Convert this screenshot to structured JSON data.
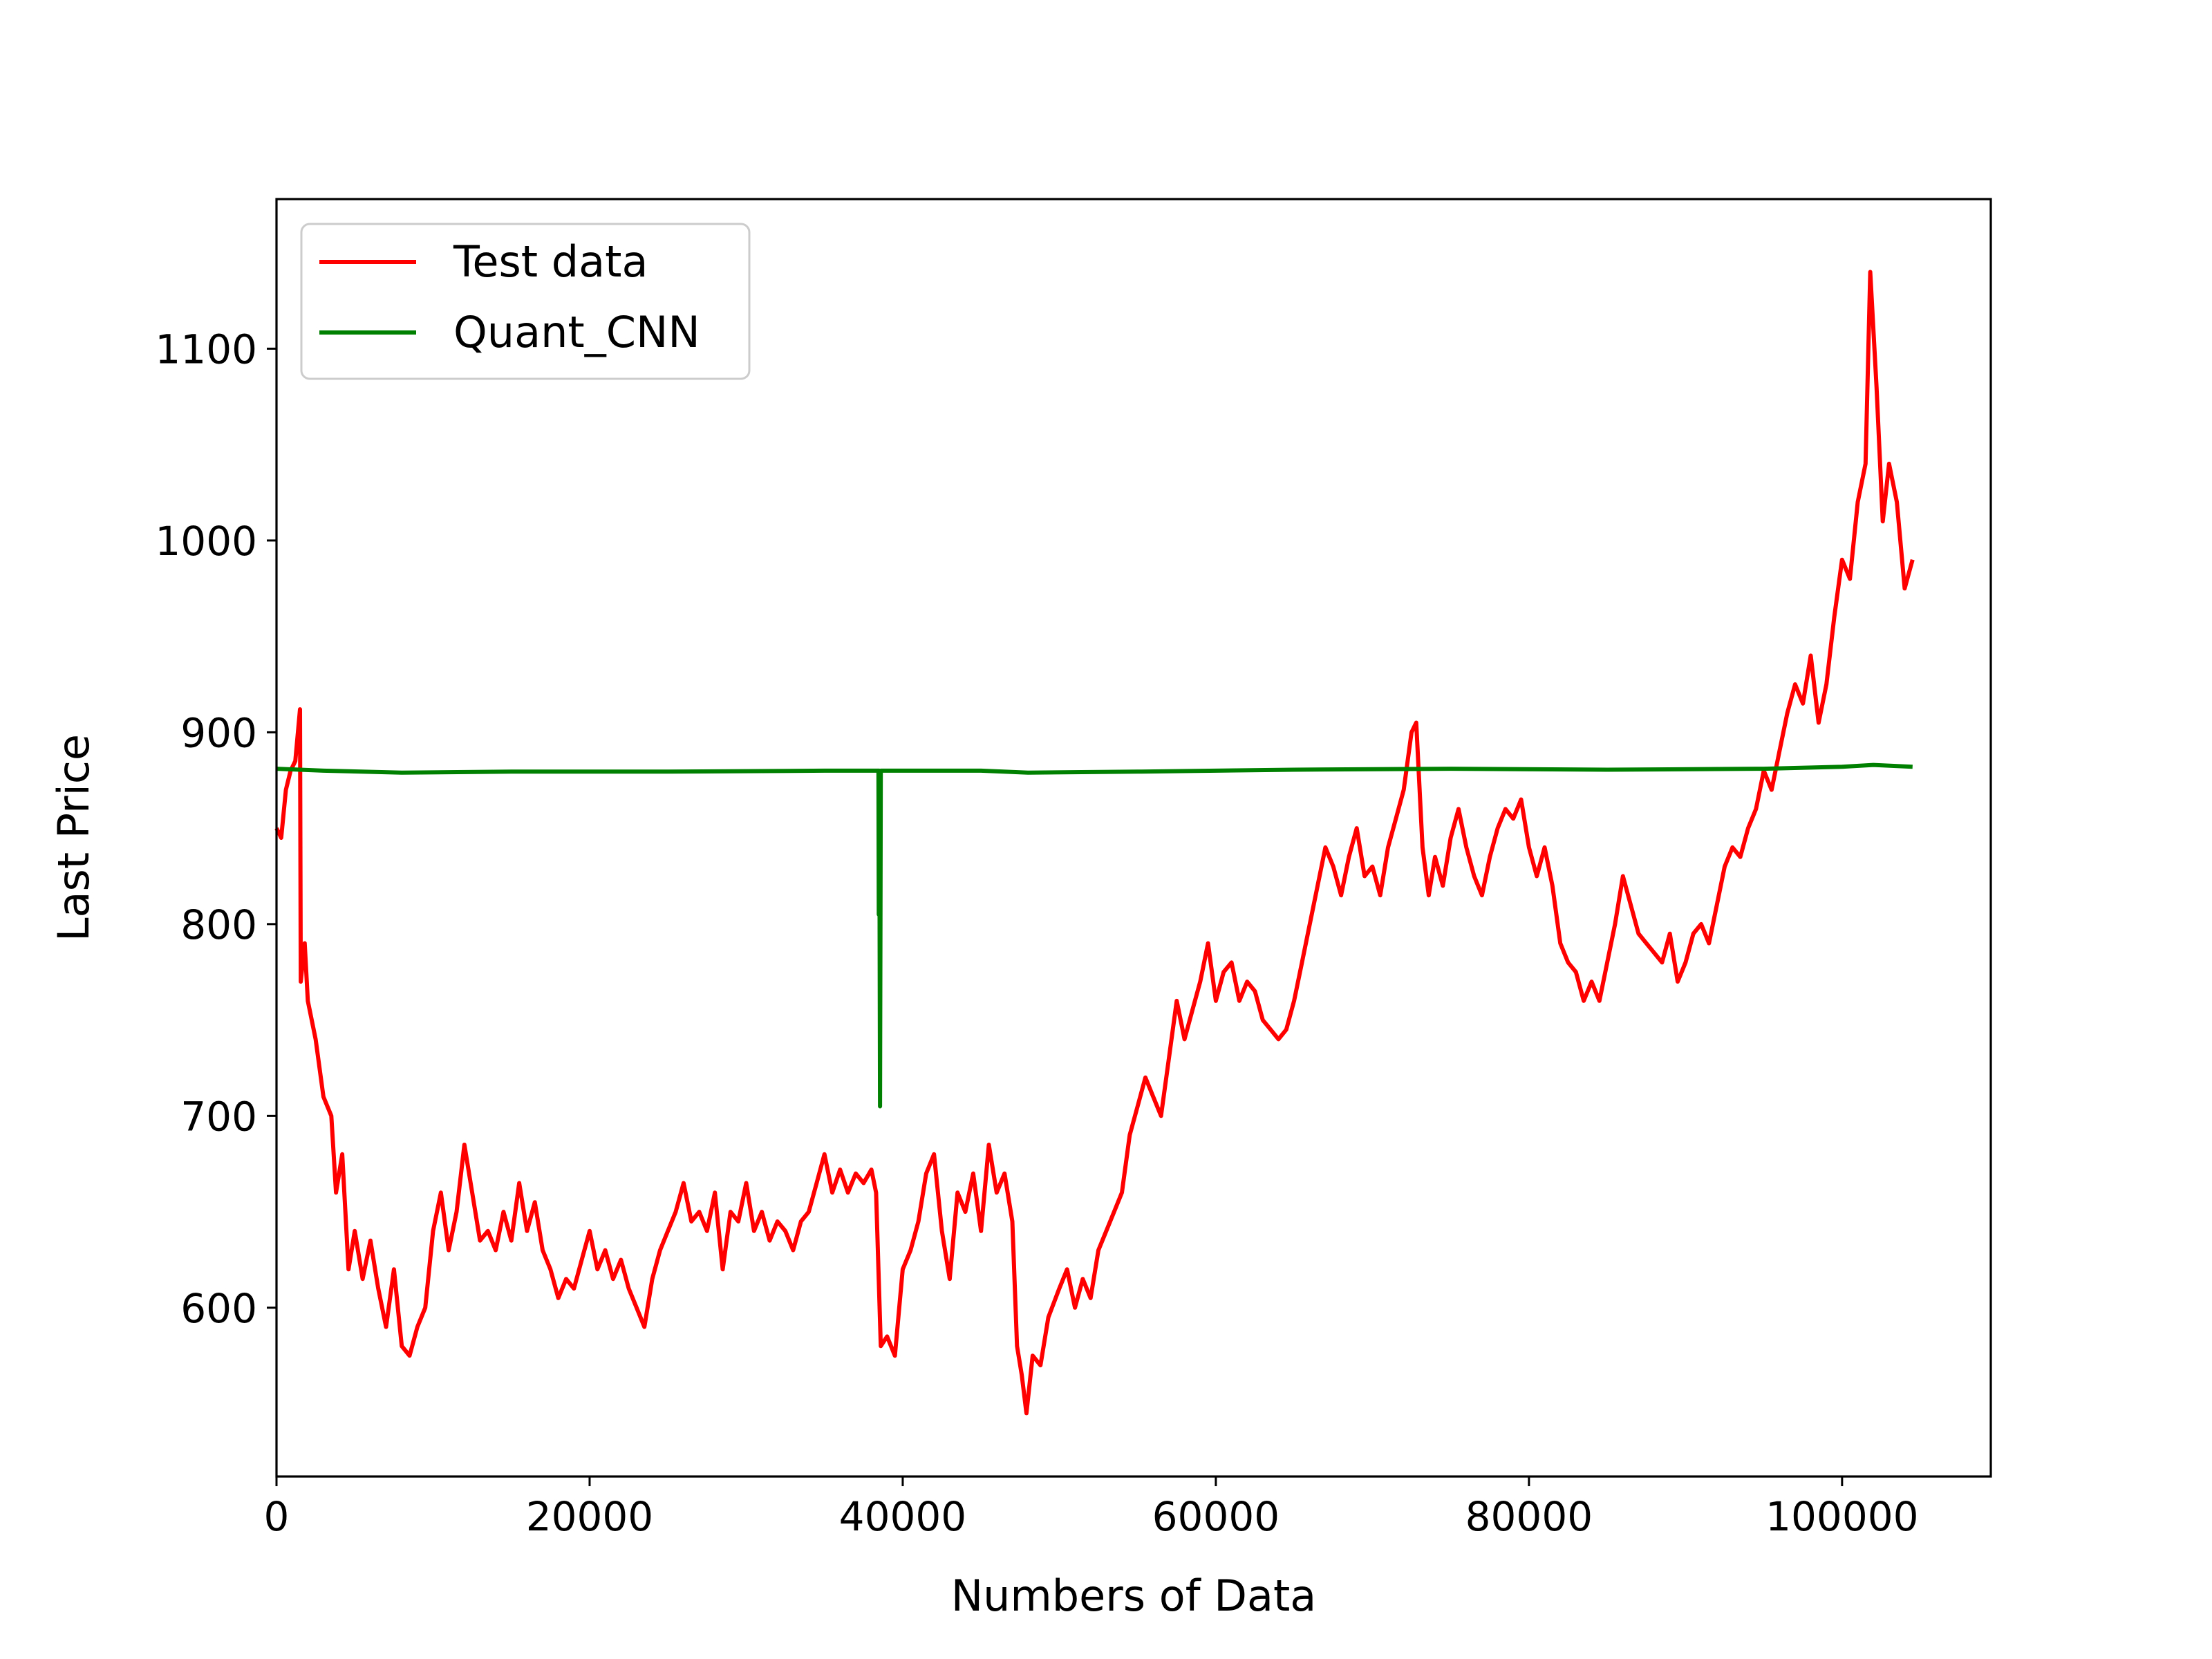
{
  "chart_data": {
    "type": "line",
    "title": "",
    "xlabel": "Numbers of Data",
    "ylabel": "Last Price",
    "xlim": [
      0,
      109500
    ],
    "ylim": [
      512,
      1178
    ],
    "xticks": [
      0,
      20000,
      40000,
      60000,
      80000,
      100000
    ],
    "xtick_labels": [
      "0",
      "20000",
      "40000",
      "60000",
      "80000",
      "100000"
    ],
    "yticks": [
      600,
      700,
      800,
      900,
      1000,
      1100
    ],
    "ytick_labels": [
      "600",
      "700",
      "800",
      "900",
      "1000",
      "1100"
    ],
    "grid": false,
    "legend": "upper-left",
    "series": [
      {
        "name": "Test data",
        "color": "#ff0000",
        "points": [
          [
            0,
            850
          ],
          [
            300,
            845
          ],
          [
            600,
            870
          ],
          [
            900,
            880
          ],
          [
            1200,
            885
          ],
          [
            1500,
            912
          ],
          [
            1550,
            770
          ],
          [
            1800,
            790
          ],
          [
            2000,
            760
          ],
          [
            2500,
            740
          ],
          [
            3000,
            710
          ],
          [
            3500,
            700
          ],
          [
            3800,
            660
          ],
          [
            4200,
            680
          ],
          [
            4600,
            620
          ],
          [
            5000,
            640
          ],
          [
            5500,
            615
          ],
          [
            6000,
            635
          ],
          [
            6500,
            610
          ],
          [
            7000,
            590
          ],
          [
            7500,
            620
          ],
          [
            8000,
            580
          ],
          [
            8500,
            575
          ],
          [
            9000,
            590
          ],
          [
            9500,
            600
          ],
          [
            10000,
            640
          ],
          [
            10500,
            660
          ],
          [
            11000,
            630
          ],
          [
            11500,
            650
          ],
          [
            12000,
            685
          ],
          [
            12500,
            660
          ],
          [
            13000,
            635
          ],
          [
            13500,
            640
          ],
          [
            14000,
            630
          ],
          [
            14500,
            650
          ],
          [
            15000,
            635
          ],
          [
            15500,
            665
          ],
          [
            16000,
            640
          ],
          [
            16500,
            655
          ],
          [
            17000,
            630
          ],
          [
            17500,
            620
          ],
          [
            18000,
            605
          ],
          [
            18500,
            615
          ],
          [
            19000,
            610
          ],
          [
            19500,
            625
          ],
          [
            20000,
            640
          ],
          [
            20500,
            620
          ],
          [
            21000,
            630
          ],
          [
            21500,
            615
          ],
          [
            22000,
            625
          ],
          [
            22500,
            610
          ],
          [
            23000,
            600
          ],
          [
            23500,
            590
          ],
          [
            24000,
            615
          ],
          [
            24500,
            630
          ],
          [
            25000,
            640
          ],
          [
            25500,
            650
          ],
          [
            26000,
            665
          ],
          [
            26500,
            645
          ],
          [
            27000,
            650
          ],
          [
            27500,
            640
          ],
          [
            28000,
            660
          ],
          [
            28500,
            620
          ],
          [
            29000,
            650
          ],
          [
            29500,
            645
          ],
          [
            30000,
            665
          ],
          [
            30500,
            640
          ],
          [
            31000,
            650
          ],
          [
            31500,
            635
          ],
          [
            32000,
            645
          ],
          [
            32500,
            640
          ],
          [
            33000,
            630
          ],
          [
            33500,
            645
          ],
          [
            34000,
            650
          ],
          [
            34500,
            665
          ],
          [
            35000,
            680
          ],
          [
            35500,
            660
          ],
          [
            36000,
            672
          ],
          [
            36500,
            660
          ],
          [
            37000,
            670
          ],
          [
            37500,
            665
          ],
          [
            38000,
            672
          ],
          [
            38300,
            660
          ],
          [
            38600,
            580
          ],
          [
            39000,
            585
          ],
          [
            39500,
            575
          ],
          [
            40000,
            620
          ],
          [
            40500,
            630
          ],
          [
            41000,
            645
          ],
          [
            41500,
            670
          ],
          [
            42000,
            680
          ],
          [
            42500,
            640
          ],
          [
            43000,
            615
          ],
          [
            43500,
            660
          ],
          [
            44000,
            650
          ],
          [
            44500,
            670
          ],
          [
            45000,
            640
          ],
          [
            45500,
            685
          ],
          [
            46000,
            660
          ],
          [
            46500,
            670
          ],
          [
            47000,
            645
          ],
          [
            47300,
            580
          ],
          [
            47600,
            565
          ],
          [
            47900,
            545
          ],
          [
            48300,
            575
          ],
          [
            48800,
            570
          ],
          [
            49300,
            595
          ],
          [
            50000,
            610
          ],
          [
            50500,
            620
          ],
          [
            51000,
            600
          ],
          [
            51500,
            615
          ],
          [
            52000,
            605
          ],
          [
            52500,
            630
          ],
          [
            53000,
            640
          ],
          [
            53500,
            650
          ],
          [
            54000,
            660
          ],
          [
            54500,
            690
          ],
          [
            55000,
            705
          ],
          [
            55500,
            720
          ],
          [
            56000,
            710
          ],
          [
            56500,
            700
          ],
          [
            57000,
            730
          ],
          [
            57500,
            760
          ],
          [
            58000,
            740
          ],
          [
            58500,
            755
          ],
          [
            59000,
            770
          ],
          [
            59500,
            790
          ],
          [
            60000,
            760
          ],
          [
            60500,
            775
          ],
          [
            61000,
            780
          ],
          [
            61500,
            760
          ],
          [
            62000,
            770
          ],
          [
            62500,
            765
          ],
          [
            63000,
            750
          ],
          [
            63500,
            745
          ],
          [
            64000,
            740
          ],
          [
            64500,
            745
          ],
          [
            65000,
            760
          ],
          [
            65500,
            780
          ],
          [
            66000,
            800
          ],
          [
            66500,
            820
          ],
          [
            67000,
            840
          ],
          [
            67500,
            830
          ],
          [
            68000,
            815
          ],
          [
            68500,
            835
          ],
          [
            69000,
            850
          ],
          [
            69500,
            825
          ],
          [
            70000,
            830
          ],
          [
            70500,
            815
          ],
          [
            71000,
            840
          ],
          [
            71500,
            855
          ],
          [
            72000,
            870
          ],
          [
            72500,
            900
          ],
          [
            72800,
            905
          ],
          [
            73200,
            840
          ],
          [
            73600,
            815
          ],
          [
            74000,
            835
          ],
          [
            74500,
            820
          ],
          [
            75000,
            845
          ],
          [
            75500,
            860
          ],
          [
            76000,
            840
          ],
          [
            76500,
            825
          ],
          [
            77000,
            815
          ],
          [
            77500,
            835
          ],
          [
            78000,
            850
          ],
          [
            78500,
            860
          ],
          [
            79000,
            855
          ],
          [
            79500,
            865
          ],
          [
            80000,
            840
          ],
          [
            80500,
            825
          ],
          [
            81000,
            840
          ],
          [
            81500,
            820
          ],
          [
            82000,
            790
          ],
          [
            82500,
            780
          ],
          [
            83000,
            775
          ],
          [
            83500,
            760
          ],
          [
            84000,
            770
          ],
          [
            84500,
            760
          ],
          [
            85000,
            780
          ],
          [
            85500,
            800
          ],
          [
            86000,
            825
          ],
          [
            86500,
            810
          ],
          [
            87000,
            795
          ],
          [
            87500,
            790
          ],
          [
            88000,
            785
          ],
          [
            88500,
            780
          ],
          [
            89000,
            795
          ],
          [
            89500,
            770
          ],
          [
            90000,
            780
          ],
          [
            90500,
            795
          ],
          [
            91000,
            800
          ],
          [
            91500,
            790
          ],
          [
            92000,
            810
          ],
          [
            92500,
            830
          ],
          [
            93000,
            840
          ],
          [
            93500,
            835
          ],
          [
            94000,
            850
          ],
          [
            94500,
            860
          ],
          [
            95000,
            880
          ],
          [
            95500,
            870
          ],
          [
            96000,
            890
          ],
          [
            96500,
            910
          ],
          [
            97000,
            925
          ],
          [
            97500,
            915
          ],
          [
            98000,
            940
          ],
          [
            98500,
            905
          ],
          [
            99000,
            925
          ],
          [
            99500,
            960
          ],
          [
            100000,
            990
          ],
          [
            100500,
            980
          ],
          [
            101000,
            1020
          ],
          [
            101500,
            1040
          ],
          [
            101800,
            1140
          ],
          [
            102200,
            1080
          ],
          [
            102600,
            1010
          ],
          [
            103000,
            1040
          ],
          [
            103500,
            1020
          ],
          [
            104000,
            975
          ],
          [
            104500,
            990
          ]
        ]
      },
      {
        "name": "Quant_CNN",
        "color": "#008000",
        "points": [
          [
            0,
            881
          ],
          [
            3000,
            880
          ],
          [
            8000,
            879
          ],
          [
            15000,
            879.5
          ],
          [
            25000,
            879.5
          ],
          [
            35000,
            880
          ],
          [
            38400,
            880
          ],
          [
            38450,
            880
          ],
          [
            38470,
            805
          ],
          [
            38480,
            880
          ],
          [
            38500,
            880
          ],
          [
            38550,
            705
          ],
          [
            38600,
            880
          ],
          [
            45000,
            880
          ],
          [
            48000,
            879
          ],
          [
            55000,
            879.5
          ],
          [
            65000,
            880.5
          ],
          [
            75000,
            881
          ],
          [
            85000,
            880.5
          ],
          [
            95000,
            881
          ],
          [
            100000,
            882
          ],
          [
            102000,
            883
          ],
          [
            104500,
            882
          ]
        ]
      }
    ]
  }
}
